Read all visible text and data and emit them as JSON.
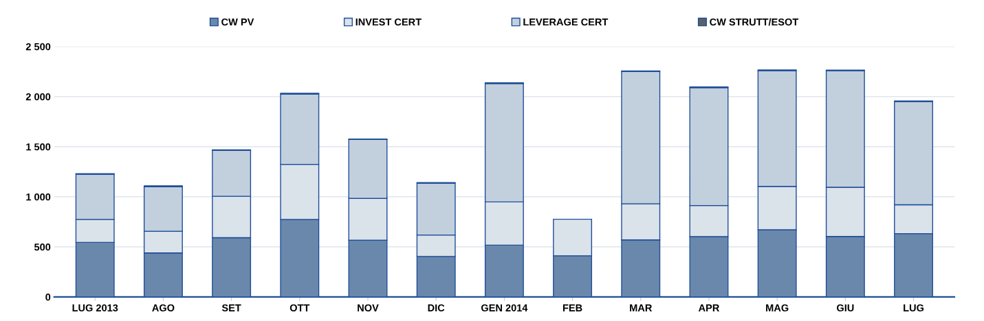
{
  "chart_data": {
    "type": "bar",
    "stacked": true,
    "categories": [
      "LUG 2013",
      "AGO",
      "SET",
      "OTT",
      "NOV",
      "DIC",
      "GEN 2014",
      "FEB",
      "MAR",
      "APR",
      "MAG",
      "GIU",
      "LUG"
    ],
    "series": [
      {
        "name": "CW PV",
        "color": "#6a88ab",
        "values": [
          545,
          439,
          592,
          774,
          566,
          404,
          517,
          411,
          569,
          602,
          670,
          604,
          632
        ]
      },
      {
        "name": "INVEST CERT",
        "color": "#dae2ea",
        "values": [
          229,
          217,
          413,
          550,
          418,
          214,
          432,
          365,
          361,
          311,
          434,
          491,
          288
        ]
      },
      {
        "name": "LEVERAGE CERT",
        "color": "#c2d0de",
        "values": [
          451,
          444,
          458,
          701,
          588,
          517,
          1182,
          null,
          1321,
          1176,
          1155,
          1164,
          1031
        ]
      },
      {
        "name": "CW STRUTT/ESOT",
        "color": "#5a6068",
        "values": [
          5,
          10,
          5,
          8,
          5,
          6,
          8,
          null,
          5,
          8,
          8,
          6,
          5
        ]
      }
    ],
    "ylim": [
      0,
      2500
    ],
    "yticks": [
      0,
      500,
      {
        "value": 1000,
        "label": "1 000"
      },
      {
        "value": 1500,
        "label": "1 500"
      },
      {
        "value": 2000,
        "label": "2 000"
      },
      {
        "value": 2500,
        "label": "2 500"
      }
    ],
    "grid": "y",
    "legend": "top"
  }
}
